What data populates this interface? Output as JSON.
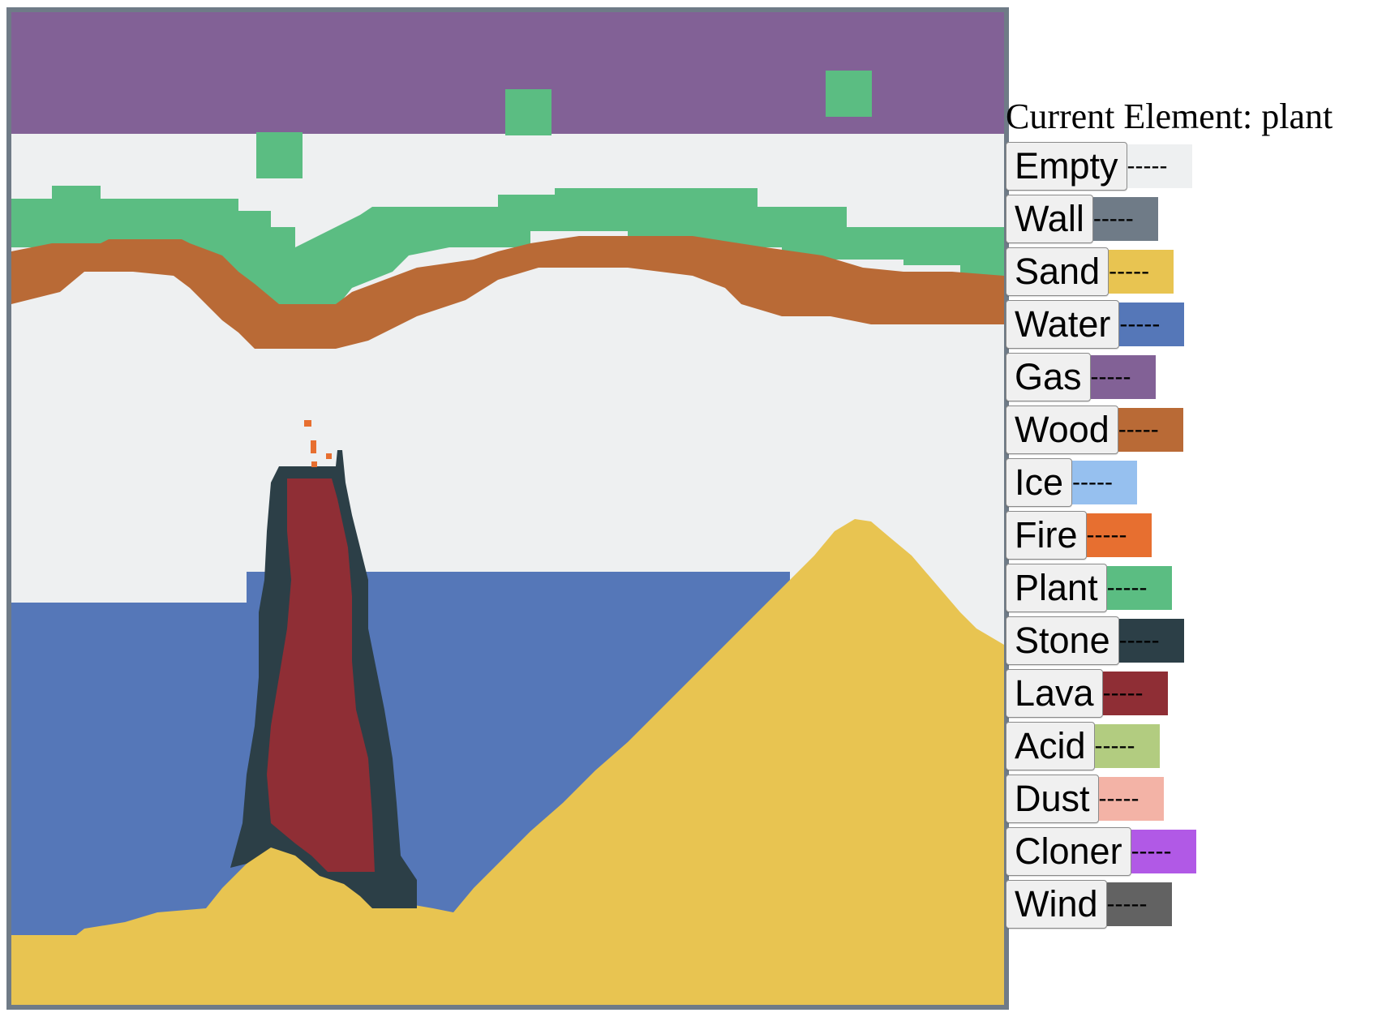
{
  "current_element": {
    "label": "Current Element:",
    "value": "plant"
  },
  "colors": {
    "empty": "#eef0f1",
    "wall": "#6f7b87",
    "sand": "#e8c451",
    "water": "#5577b8",
    "gas": "#826196",
    "wood": "#b96a36",
    "ice": "#96c0ef",
    "fire": "#e76f30",
    "plant": "#5bbd82",
    "stone": "#2c3f47",
    "lava": "#8f2e35",
    "acid": "#b2cc80",
    "dust": "#f3b3a6",
    "cloner": "#b159e6",
    "wind": "#626262"
  },
  "palette": [
    {
      "id": "empty",
      "label": "Empty",
      "swatch_text": "-----",
      "color": "#eef0f1"
    },
    {
      "id": "wall",
      "label": "Wall",
      "swatch_text": "-----",
      "color": "#6f7b87"
    },
    {
      "id": "sand",
      "label": "Sand",
      "swatch_text": "-----",
      "color": "#e8c451"
    },
    {
      "id": "water",
      "label": "Water",
      "swatch_text": "-----",
      "color": "#5577b8"
    },
    {
      "id": "gas",
      "label": "Gas",
      "swatch_text": "-----",
      "color": "#826196"
    },
    {
      "id": "wood",
      "label": "Wood",
      "swatch_text": "-----",
      "color": "#b96a36"
    },
    {
      "id": "ice",
      "label": "Ice",
      "swatch_text": "-----",
      "color": "#96c0ef"
    },
    {
      "id": "fire",
      "label": "Fire",
      "swatch_text": "-----",
      "color": "#e76f30"
    },
    {
      "id": "plant",
      "label": "Plant",
      "swatch_text": "-----",
      "color": "#5bbd82"
    },
    {
      "id": "stone",
      "label": "Stone",
      "swatch_text": "-----",
      "color": "#2c3f47"
    },
    {
      "id": "lava",
      "label": "Lava",
      "swatch_text": "-----",
      "color": "#8f2e35"
    },
    {
      "id": "acid",
      "label": "Acid",
      "swatch_text": "-----",
      "color": "#b2cc80"
    },
    {
      "id": "dust",
      "label": "Dust",
      "swatch_text": "-----",
      "color": "#f3b3a6"
    },
    {
      "id": "cloner",
      "label": "Cloner",
      "swatch_text": "-----",
      "color": "#b159e6"
    },
    {
      "id": "wind",
      "label": "Wind",
      "swatch_text": "-----",
      "color": "#626262"
    }
  ]
}
